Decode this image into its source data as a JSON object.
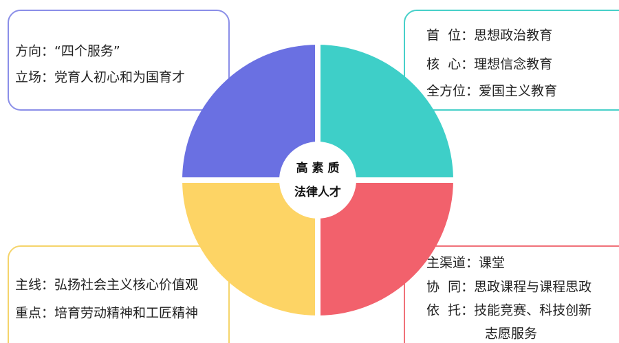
{
  "center": {
    "lines": [
      "高 素 质",
      "法律人才"
    ]
  },
  "boxes": [
    {
      "lines": [
        "方向：“四个服务”",
        "立场：党育人初心和为国育才"
      ]
    },
    {
      "lines": [
        "首  位：思想政治教育",
        "核  心：理想信念教育",
        "全方位：爱国主义教育"
      ]
    },
    {
      "lines": [
        "主线：弘扬社会主义核心价值观",
        "重点：培育劳动精神和工匠精神"
      ]
    },
    {
      "lines": [
        "主渠道：课堂",
        "协  同：思政课程与课程思政",
        "依  托：技能竞赛、科技创新",
        "志愿服务"
      ]
    }
  ]
}
